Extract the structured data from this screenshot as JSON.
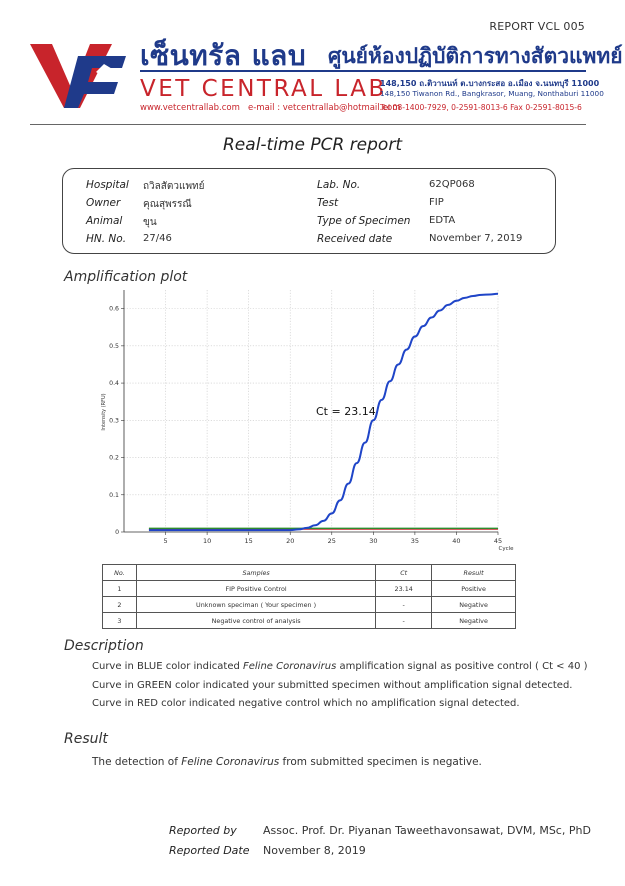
{
  "header": {
    "doc_code": "REPORT VCL 005",
    "brand_thai": "เซ็นทรัล แลบ",
    "brand_thai_sub": "ศูนย์ห้องปฏิบัติการทางสัตวแพทย์",
    "brand_eng": "VET CENTRAL LAB",
    "website": "www.vetcentrallab.com",
    "email": "e-mail : vetcentrallab@hotmail.com",
    "address_thai": "148,150 ถ.ติวานนท์ ต.บางกระสอ อ.เมือง จ.นนทบุรี 11000",
    "address_eng": "148,150 Tiwanon Rd., Bangkrasor, Muang, Nonthaburi 11000",
    "tel": "Tel 08-1400-7929, 0-2591-8013-6  Fax 0-2591-8015-6",
    "colors": {
      "blue": "#1f3a8a",
      "red": "#c8242b"
    }
  },
  "title": "Real-time PCR report",
  "info": {
    "hospital_label": "Hospital",
    "hospital": "ถวิลสัตวแพทย์",
    "owner_label": "Owner",
    "owner": "คุณสุพรรณี",
    "animal_label": "Animal",
    "animal": "ขุน",
    "hn_label": "HN. No.",
    "hn": "27/46",
    "lab_label": "Lab. No.",
    "lab": "62QP068",
    "test_label": "Test",
    "test": "FIP",
    "specimen_label": "Type of Specimen",
    "specimen": "EDTA",
    "received_label": "Received date",
    "received": "November 7, 2019"
  },
  "plot_heading": "Amplification plot",
  "chart_data": {
    "type": "line",
    "ylabel": "Intensity (RFU)",
    "xlabel": "Cycle",
    "xlim": [
      0,
      45
    ],
    "ylim": [
      0,
      0.65
    ],
    "x_ticks": [
      5,
      10,
      15,
      20,
      25,
      30,
      35,
      40,
      45
    ],
    "y_ticks": [
      0,
      0.1,
      0.2,
      0.3,
      0.4,
      0.5,
      0.6
    ],
    "annotation": "Ct = 23.14",
    "series": [
      {
        "color": "#1f45c8",
        "x": [
          3,
          20,
          21,
          22,
          23,
          24,
          25,
          26,
          27,
          28,
          29,
          30,
          31,
          32,
          33,
          34,
          35,
          36,
          37,
          38,
          39,
          40,
          41,
          42,
          43,
          44,
          45
        ],
        "y": [
          0.005,
          0.005,
          0.007,
          0.011,
          0.018,
          0.03,
          0.05,
          0.085,
          0.13,
          0.185,
          0.24,
          0.3,
          0.355,
          0.405,
          0.45,
          0.49,
          0.525,
          0.553,
          0.576,
          0.595,
          0.61,
          0.621,
          0.629,
          0.634,
          0.637,
          0.638,
          0.64
        ]
      },
      {
        "color": "#2e8b2e",
        "x": [
          3,
          45
        ],
        "y": [
          0.01,
          0.01
        ]
      },
      {
        "color": "#c8242b",
        "x": [
          3,
          45
        ],
        "y": [
          0.008,
          0.008
        ]
      }
    ]
  },
  "table": {
    "headers": [
      "No.",
      "Samples",
      "Ct",
      "Result"
    ],
    "rows": [
      [
        "1",
        "FIP Positive Control",
        "23.14",
        "Positive"
      ],
      [
        "2",
        "Unknown speciman ( Your specimen )",
        "-",
        "Negative"
      ],
      [
        "3",
        "Negative control of analysis",
        "-",
        "Negative"
      ]
    ]
  },
  "description": {
    "heading": "Description",
    "line1_a": "Curve in BLUE color indicated ",
    "line1_i": "Feline Coronavirus",
    "line1_b": " amplification signal as positive control ( Ct < 40 )",
    "line2": "Curve in GREEN color indicated your submitted specimen without amplification signal detected.",
    "line3": "Curve in RED color indicated negative control which no amplification signal detected."
  },
  "result": {
    "heading": "Result",
    "text_a": "The detection of ",
    "text_i": "Feline Coronavirus",
    "text_b": " from submitted specimen is negative."
  },
  "signature": {
    "reported_by_label": "Reported by",
    "reported_by": "Assoc. Prof. Dr. Piyanan Taweethavonsawat, DVM, MSc, PhD",
    "reported_date_label": "Reported Date",
    "reported_date": "November 8, 2019"
  }
}
